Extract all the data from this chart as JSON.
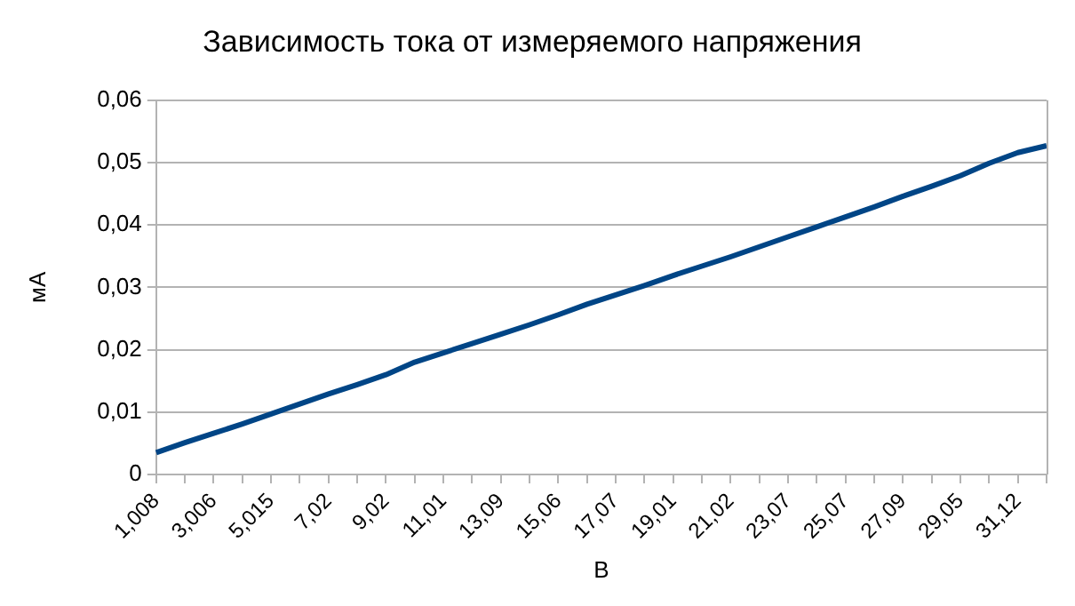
{
  "chart_data": {
    "type": "line",
    "title": "Зависимость тока от измеряемого напряжения",
    "xlabel": "В",
    "ylabel": "мА",
    "categories": [
      "1,008",
      null,
      "3,006",
      null,
      "5,015",
      null,
      "7,02",
      null,
      "9,02",
      null,
      "11,01",
      null,
      "13,09",
      null,
      "15,06",
      null,
      "17,07",
      null,
      "19,01",
      null,
      "21,02",
      null,
      "23,07",
      null,
      "25,07",
      null,
      "27,09",
      null,
      "29,05",
      null,
      "31,12",
      null
    ],
    "series": [
      {
        "color": "#004586",
        "values": [
          0.0035,
          0.0051,
          0.0066,
          0.0081,
          0.0097,
          0.0113,
          0.0129,
          0.0144,
          0.016,
          0.018,
          0.0195,
          0.021,
          0.0225,
          0.024,
          0.0256,
          0.0273,
          0.0288,
          0.0303,
          0.0319,
          0.0334,
          0.0349,
          0.0365,
          0.0381,
          0.0397,
          0.0413,
          0.0429,
          0.0446,
          0.0462,
          0.0479,
          0.0499,
          0.0516,
          0.0527
        ]
      }
    ],
    "ylim": [
      0,
      0.06
    ],
    "yticks": [
      {
        "value": 0,
        "label": "0"
      },
      {
        "value": 0.01,
        "label": "0,01"
      },
      {
        "value": 0.02,
        "label": "0,02"
      },
      {
        "value": 0.03,
        "label": "0,03"
      },
      {
        "value": 0.04,
        "label": "0,04"
      },
      {
        "value": 0.05,
        "label": "0,05"
      },
      {
        "value": 0.06,
        "label": "0,06"
      }
    ],
    "grid": "y",
    "legend": false,
    "marker": "none",
    "line_style": "solid"
  }
}
